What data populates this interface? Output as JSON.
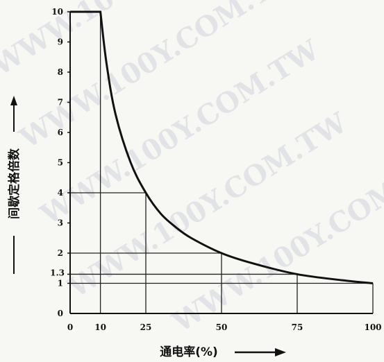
{
  "watermark": "WWW.100Y.COM.TW",
  "chart_data": {
    "type": "line",
    "xlabel": "通电率(%)",
    "ylabel": "间歇定格倍数",
    "xlim": [
      0,
      100
    ],
    "ylim": [
      0,
      10
    ],
    "x_ticks": [
      0,
      10,
      25,
      50,
      75,
      100
    ],
    "y_ticks": [
      0,
      1,
      2,
      3,
      4,
      5,
      6,
      7,
      8,
      9,
      10
    ],
    "y_extra_tick_label": "1.3",
    "y_extra_tick_value": 1.3,
    "series": [
      {
        "x": [
          0,
          10,
          12,
          15,
          20,
          25,
          30,
          35,
          40,
          50,
          60,
          75,
          90,
          100
        ],
        "y": [
          10,
          10,
          8.3,
          6.6,
          5.0,
          4.0,
          3.3,
          2.85,
          2.5,
          2.0,
          1.67,
          1.3,
          1.1,
          1.0
        ]
      }
    ],
    "reference_points": [
      {
        "x": 10,
        "y": 10
      },
      {
        "x": 25,
        "y": 4
      },
      {
        "x": 50,
        "y": 2
      },
      {
        "x": 75,
        "y": 1.3
      },
      {
        "x": 100,
        "y": 1
      }
    ],
    "grid": false
  }
}
